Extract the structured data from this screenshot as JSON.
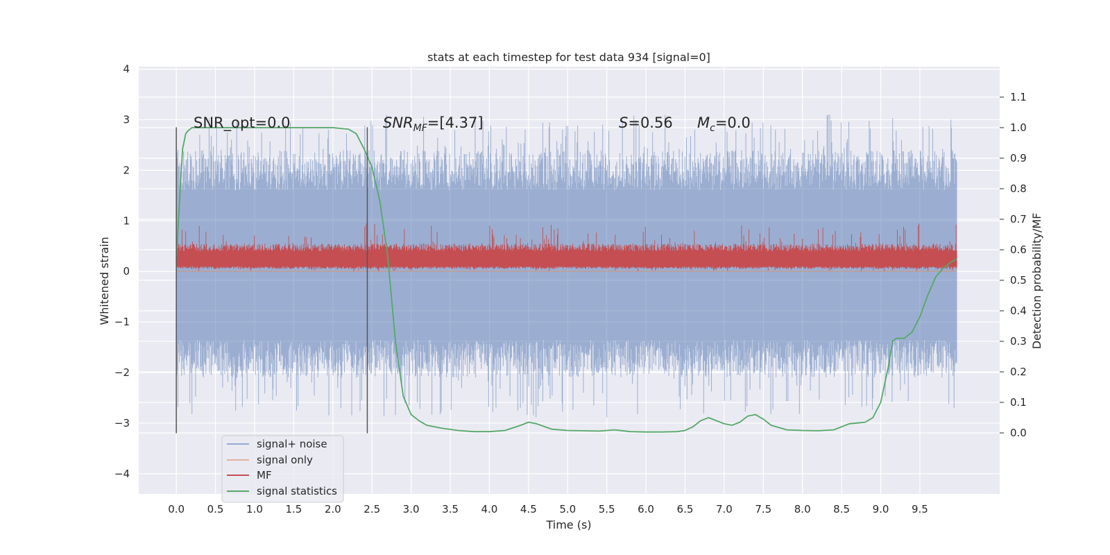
{
  "chart_data": {
    "type": "line",
    "title": "stats at each timestep for test data 934 [signal=0]",
    "xlabel": "Time (s)",
    "ylabel": "Whitened strain",
    "ylabel_right": "Detection probability/MF",
    "xlim": [
      -0.48,
      10.52
    ],
    "ylim": [
      -4.4,
      4.05
    ],
    "ylim_right": [
      -0.2,
      1.2
    ],
    "x_ticks": [
      "0.0",
      "0.5",
      "1.0",
      "1.5",
      "2.0",
      "2.5",
      "3.0",
      "3.5",
      "4.0",
      "4.5",
      "5.0",
      "5.5",
      "6.0",
      "6.5",
      "7.0",
      "7.5",
      "8.0",
      "8.5",
      "9.0",
      "9.5"
    ],
    "y_ticks": [
      "4",
      "3",
      "2",
      "1",
      "0",
      "−1",
      "−2",
      "−3",
      "−4"
    ],
    "y_ticks_right": [
      "0.0",
      "0.1",
      "0.2",
      "0.3",
      "0.4",
      "0.5",
      "0.6",
      "0.7",
      "0.8",
      "0.9",
      "1.0",
      "1.1"
    ],
    "grid": true,
    "legend_position": "lower-left",
    "annotations": {
      "snr_opt": "SNR_opt=0.0",
      "snr_mf_symbol": "SNR",
      "snr_mf_sub": "MF",
      "snr_mf_value": "=[4.37]",
      "s_symbol": "S",
      "s_value": "=0.56",
      "mc_symbol": "M",
      "mc_sub": "c",
      "mc_value": "=0.0"
    },
    "vertical_lines_x": [
      0.0,
      2.44
    ],
    "vertical_lines_yrange": [
      -3.2,
      2.85
    ],
    "series": [
      {
        "name": "signal+ noise",
        "color": "#4c72b0",
        "axis": "left",
        "t_range": [
          0.0,
          9.97
        ],
        "band": {
          "upper": [
            1.6,
            2.4,
            3.1
          ],
          "lower": [
            -1.35,
            -2.1,
            -2.9
          ]
        }
      },
      {
        "name": "signal only",
        "color": "#dd8452",
        "axis": "left",
        "values": [
          0,
          0
        ]
      },
      {
        "name": "MF",
        "color": "#c44e52",
        "axis": "left",
        "t_range": [
          0.0,
          9.97
        ],
        "band": {
          "upper": [
            0.4,
            0.55,
            0.95
          ],
          "lower": [
            0.05,
            0.1,
            0.0
          ]
        }
      },
      {
        "name": "signal statistics",
        "color": "#55a868",
        "axis": "right",
        "x": [
          0.0,
          0.05,
          0.08,
          0.12,
          0.15,
          0.2,
          0.3,
          0.5,
          1.0,
          1.5,
          2.0,
          2.2,
          2.3,
          2.4,
          2.5,
          2.6,
          2.7,
          2.8,
          2.9,
          3.0,
          3.1,
          3.2,
          3.4,
          3.6,
          3.8,
          4.0,
          4.2,
          4.4,
          4.5,
          4.6,
          4.8,
          5.0,
          5.2,
          5.4,
          5.6,
          5.8,
          6.0,
          6.2,
          6.4,
          6.5,
          6.6,
          6.7,
          6.8,
          6.9,
          7.0,
          7.1,
          7.2,
          7.3,
          7.4,
          7.5,
          7.6,
          7.8,
          8.0,
          8.2,
          8.4,
          8.6,
          8.8,
          8.9,
          9.0,
          9.1,
          9.15,
          9.2,
          9.3,
          9.4,
          9.5,
          9.6,
          9.7,
          9.8,
          9.9,
          9.97
        ],
        "values": [
          0.57,
          0.8,
          0.93,
          0.98,
          0.99,
          1.0,
          1.0,
          1.0,
          1.0,
          1.0,
          1.0,
          0.995,
          0.98,
          0.93,
          0.87,
          0.76,
          0.58,
          0.3,
          0.12,
          0.06,
          0.04,
          0.025,
          0.015,
          0.008,
          0.004,
          0.004,
          0.008,
          0.025,
          0.035,
          0.03,
          0.012,
          0.008,
          0.007,
          0.006,
          0.01,
          0.004,
          0.003,
          0.003,
          0.004,
          0.008,
          0.02,
          0.04,
          0.05,
          0.04,
          0.03,
          0.025,
          0.035,
          0.055,
          0.06,
          0.045,
          0.025,
          0.01,
          0.008,
          0.007,
          0.01,
          0.03,
          0.035,
          0.05,
          0.1,
          0.22,
          0.3,
          0.31,
          0.31,
          0.33,
          0.38,
          0.45,
          0.51,
          0.54,
          0.56,
          0.57
        ]
      }
    ]
  }
}
